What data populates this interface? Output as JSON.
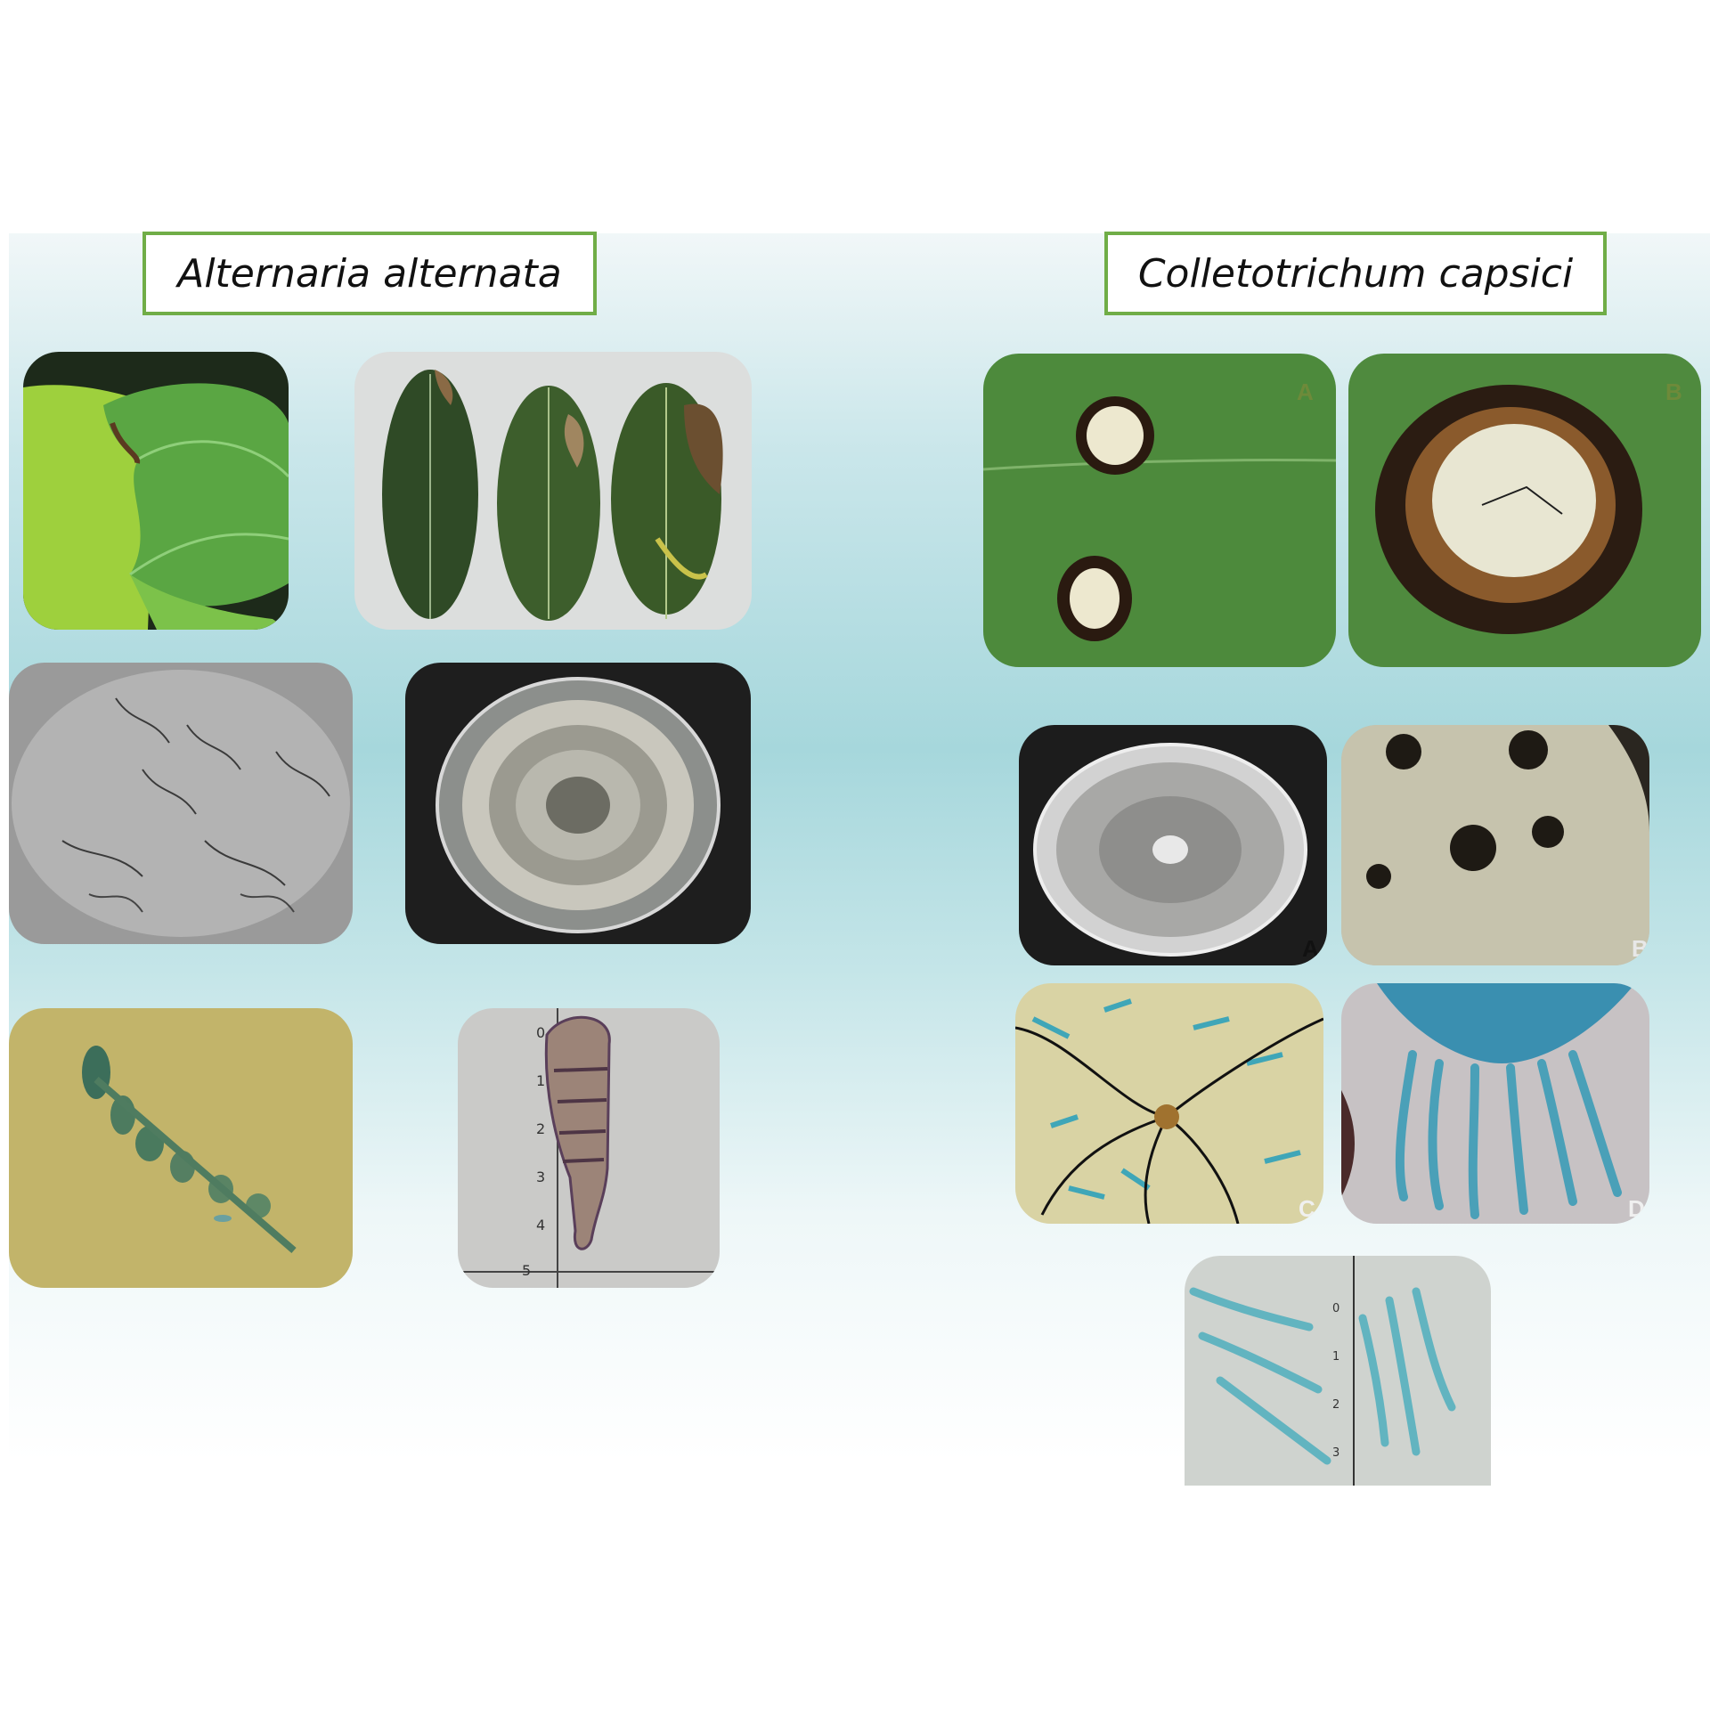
{
  "left_section": {
    "title": "Alternaria alternata"
  },
  "right_section": {
    "title": "Colletotrichum capsici",
    "panel_labels": {
      "top": [
        "A",
        "B"
      ],
      "middle": [
        "A",
        "B"
      ],
      "lower": [
        "C",
        "D"
      ]
    }
  },
  "scales": {
    "alternaria_ruler_ticks": [
      "0",
      "1",
      "2",
      "3",
      "4",
      "5"
    ],
    "colletotrichum_ruler_ticks": [
      "0",
      "1",
      "2",
      "3"
    ]
  },
  "colors": {
    "title_border": "#70ad47",
    "background_teal": "#a6d7dc"
  }
}
